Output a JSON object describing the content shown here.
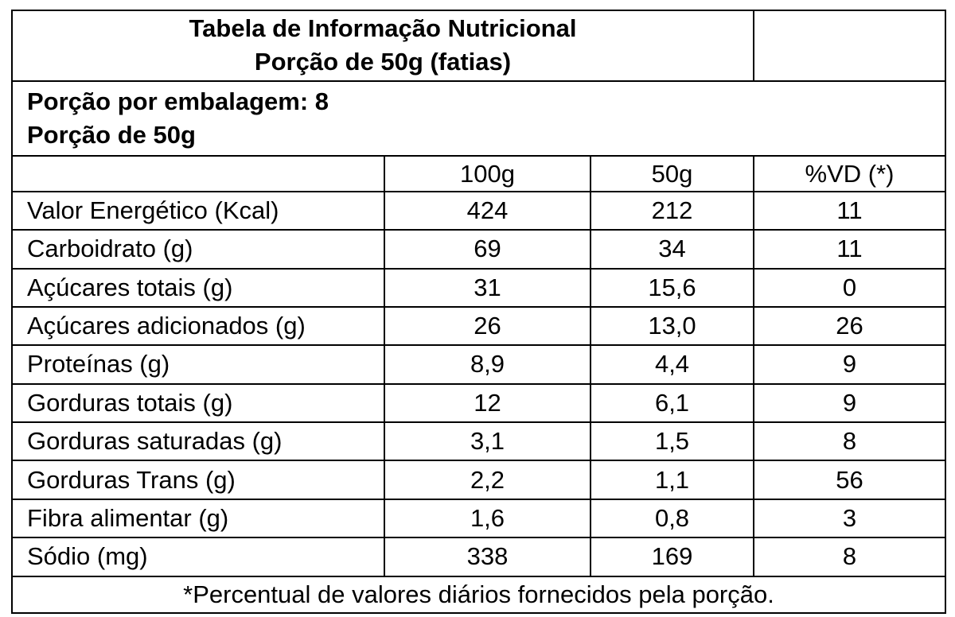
{
  "title": {
    "line1": "Tabela de Informação Nutricional",
    "line2": "Porção de 50g (fatias)"
  },
  "portion": {
    "per_package": "Porção por embalagem: 8",
    "size": "Porção de 50g"
  },
  "columns": [
    "",
    "100g",
    "50g",
    "%VD (*)"
  ],
  "rows": [
    {
      "label": "Valor Energético (Kcal)",
      "per100": "424",
      "per50": "212",
      "vd": "11"
    },
    {
      "label": "Carboidrato (g)",
      "per100": "69",
      "per50": "34",
      "vd": "11"
    },
    {
      "label": "Açúcares totais (g)",
      "per100": "31",
      "per50": "15,6",
      "vd": "0"
    },
    {
      "label": "Açúcares adicionados (g)",
      "per100": "26",
      "per50": "13,0",
      "vd": "26"
    },
    {
      "label": "Proteínas (g)",
      "per100": "8,9",
      "per50": "4,4",
      "vd": "9"
    },
    {
      "label": "Gorduras totais (g)",
      "per100": "12",
      "per50": "6,1",
      "vd": "9"
    },
    {
      "label": "Gorduras saturadas (g)",
      "per100": "3,1",
      "per50": "1,5",
      "vd": "8"
    },
    {
      "label": "Gorduras Trans (g)",
      "per100": "2,2",
      "per50": "1,1",
      "vd": "56"
    },
    {
      "label": "Fibra alimentar (g)",
      "per100": "1,6",
      "per50": "0,8",
      "vd": "3"
    },
    {
      "label": "Sódio (mg)",
      "per100": "338",
      "per50": "169",
      "vd": "8"
    }
  ],
  "footnote": "*Percentual de valores diários fornecidos pela porção."
}
